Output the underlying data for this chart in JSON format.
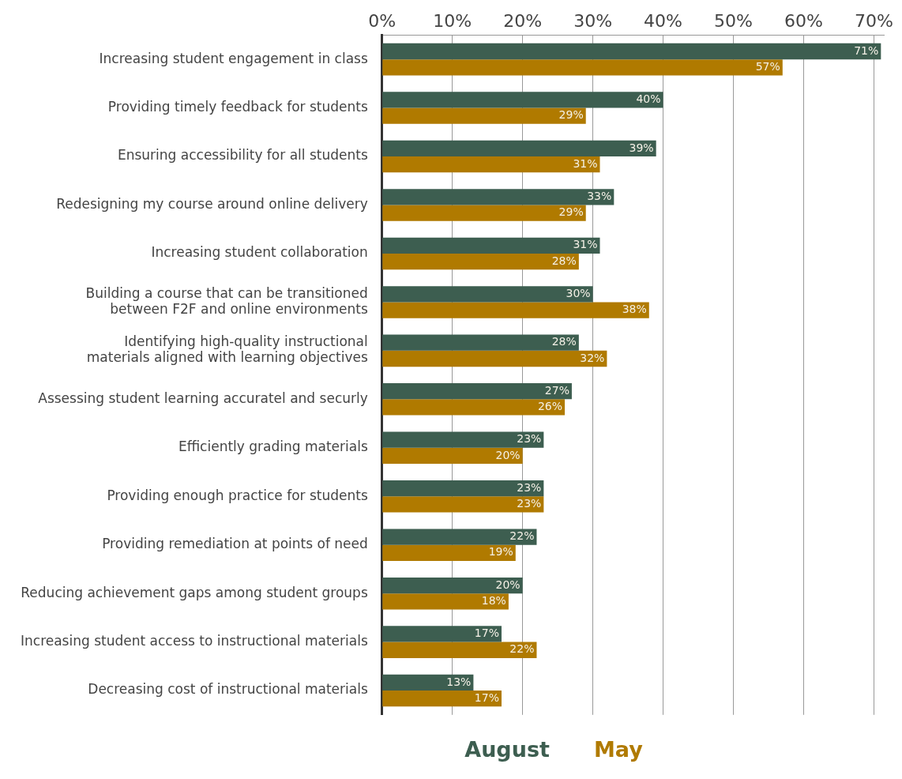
{
  "chart_data": {
    "type": "bar",
    "orientation": "horizontal",
    "categories": [
      "Increasing student engagement in class",
      "Providing timely feedback for students",
      "Ensuring accessibility for all students",
      "Redesigning my course around online delivery",
      "Increasing student collaboration",
      "Building a course that can be transitioned between F2F and online environments",
      "Identifying high-quality instructional materials aligned with learning objectives",
      "Assessing student learning accuratel and securly",
      "Efficiently grading materials",
      "Providing enough practice for students",
      "Providing remediation at points of need",
      "Reducing achievement gaps among student groups",
      "Increasing student access to instructional materials",
      "Decreasing cost of instructional materials"
    ],
    "series": [
      {
        "name": "August",
        "color": "#3d5e50",
        "values": [
          71,
          40,
          39,
          33,
          31,
          30,
          28,
          27,
          23,
          23,
          22,
          20,
          17,
          13
        ],
        "value_labels": [
          "71%",
          "40%",
          "39%",
          "33%",
          "31%",
          "30%",
          "28%",
          "27%",
          "23%",
          "23%",
          "22%",
          "20%",
          "17%",
          "13%"
        ]
      },
      {
        "name": "May",
        "color": "#b07a00",
        "values": [
          57,
          29,
          31,
          29,
          28,
          38,
          32,
          26,
          20,
          23,
          19,
          18,
          22,
          17
        ],
        "value_labels": [
          "57%",
          "29%",
          "31%",
          "29%",
          "28%",
          "38%",
          "32%",
          "26%",
          "20%",
          "23%",
          "19%",
          "18%",
          "22%",
          "17%"
        ]
      }
    ],
    "xlim": [
      0,
      71.5
    ],
    "xticks": [
      {
        "value": 0,
        "label": "0%"
      },
      {
        "value": 10,
        "label": "10%"
      },
      {
        "value": 20,
        "label": "20%"
      },
      {
        "value": 30,
        "label": "30%"
      },
      {
        "value": 40,
        "label": "40%"
      },
      {
        "value": 50,
        "label": "50%"
      },
      {
        "value": 60,
        "label": "60%"
      },
      {
        "value": 70,
        "label": "70%"
      }
    ],
    "grid": "x",
    "legend": "bottom"
  }
}
